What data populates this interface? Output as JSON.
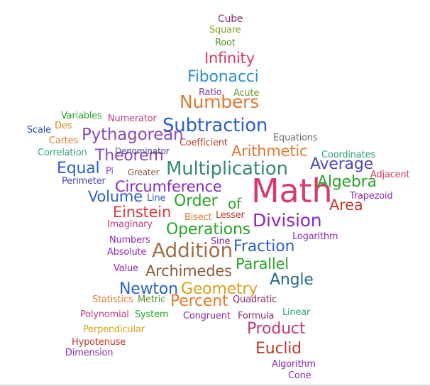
{
  "words": [
    {
      "id": "cube",
      "text": "Cube",
      "color": "#8b2a6e"
    },
    {
      "id": "square",
      "text": "Square",
      "color": "#8aa329"
    },
    {
      "id": "root",
      "text": "Root",
      "color": "#5a8a2a"
    },
    {
      "id": "infinity",
      "text": "Infinity",
      "color": "#d93a5c"
    },
    {
      "id": "fibonacci",
      "text": "Fibonacci",
      "color": "#2a8fc9"
    },
    {
      "id": "ratio",
      "text": "Ratio",
      "color": "#8b3a99"
    },
    {
      "id": "acute",
      "text": "Acute",
      "color": "#6a9a2a"
    },
    {
      "id": "numbers-top",
      "text": "Numbers",
      "color": "#e07a30"
    },
    {
      "id": "variables",
      "text": "Variables",
      "color": "#2aa32a"
    },
    {
      "id": "numerator",
      "text": "Numerator",
      "color": "#c03a80"
    },
    {
      "id": "subtraction",
      "text": "Subtraction",
      "color": "#2a5fc9"
    },
    {
      "id": "scale",
      "text": "Scale",
      "color": "#2a4fb9"
    },
    {
      "id": "des",
      "text": "Des",
      "color": "#d98a1a"
    },
    {
      "id": "pythagorean",
      "text": "Pythagorean",
      "color": "#8b4ab9"
    },
    {
      "id": "equations",
      "text": "Equations",
      "color": "#6a6a6a"
    },
    {
      "id": "cartes",
      "text": "Cartes",
      "color": "#e07a30"
    },
    {
      "id": "coefficient",
      "text": "Coefficient",
      "color": "#c0392b"
    },
    {
      "id": "arithmetic",
      "text": "Arithmetic",
      "color": "#e07a30"
    },
    {
      "id": "correlation",
      "text": "Correlation",
      "color": "#2aa370"
    },
    {
      "id": "theorem",
      "text": "Theorem",
      "color": "#8b4ab9"
    },
    {
      "id": "denominator",
      "text": "Denominator",
      "color": "#5a4a8a"
    },
    {
      "id": "coordinates",
      "text": "Coordinates",
      "color": "#2aa370"
    },
    {
      "id": "equal",
      "text": "Equal",
      "color": "#2a5fc9"
    },
    {
      "id": "pi",
      "text": "Pi",
      "color": "#8b4ab9"
    },
    {
      "id": "greater",
      "text": "Greater",
      "color": "#8b5a3a"
    },
    {
      "id": "multiplication",
      "text": "Multiplication",
      "color": "#3a8a6a"
    },
    {
      "id": "average",
      "text": "Average",
      "color": "#4a4ab9"
    },
    {
      "id": "adjacent",
      "text": "Adjacent",
      "color": "#d93a5c"
    },
    {
      "id": "perimeter",
      "text": "Perimeter",
      "color": "#4a4ab9"
    },
    {
      "id": "circumference",
      "text": "Circumference",
      "color": "#8b2ab9"
    },
    {
      "id": "math",
      "text": "Math",
      "color": "#d93a6c"
    },
    {
      "id": "algebra",
      "text": "Algebra",
      "color": "#2aa32a"
    },
    {
      "id": "volume",
      "text": "Volume",
      "color": "#2a5fc9"
    },
    {
      "id": "line",
      "text": "Line",
      "color": "#2a5fc9"
    },
    {
      "id": "order",
      "text": "Order",
      "color": "#2aa32a"
    },
    {
      "id": "of",
      "text": "of",
      "color": "#2aa32a"
    },
    {
      "id": "trapezoid",
      "text": "Trapezoid",
      "color": "#8b2ab9"
    },
    {
      "id": "area",
      "text": "Area",
      "color": "#c0392b"
    },
    {
      "id": "einstein",
      "text": "Einstein",
      "color": "#d93a3a"
    },
    {
      "id": "bisect",
      "text": "Bisect",
      "color": "#e07a30"
    },
    {
      "id": "lesser",
      "text": "Lesser",
      "color": "#c0392b"
    },
    {
      "id": "division",
      "text": "Division",
      "color": "#8b2ab9"
    },
    {
      "id": "imaginary",
      "text": "Imaginary",
      "color": "#c03a80"
    },
    {
      "id": "operations",
      "text": "Operations",
      "color": "#2aa32a"
    },
    {
      "id": "logarithm",
      "text": "Logarithm",
      "color": "#8b2ab9"
    },
    {
      "id": "numbers-mid",
      "text": "Numbers",
      "color": "#8b2ab9"
    },
    {
      "id": "sine",
      "text": "Sine",
      "color": "#8b2a8a"
    },
    {
      "id": "fraction",
      "text": "Fraction",
      "color": "#2a5fc9"
    },
    {
      "id": "absolute",
      "text": "Absolute",
      "color": "#8b2ab9"
    },
    {
      "id": "addition",
      "text": "Addition",
      "color": "#a0704a"
    },
    {
      "id": "parallel",
      "text": "Parallel",
      "color": "#2aa32a"
    },
    {
      "id": "value",
      "text": "Value",
      "color": "#8b2ab9"
    },
    {
      "id": "archimedes",
      "text": "Archimedes",
      "color": "#8b5a3a"
    },
    {
      "id": "angle",
      "text": "Angle",
      "color": "#2a6a8a"
    },
    {
      "id": "newton",
      "text": "Newton",
      "color": "#2a5fc9"
    },
    {
      "id": "geometry",
      "text": "Geometry",
      "color": "#d9a01a"
    },
    {
      "id": "statistics",
      "text": "Statistics",
      "color": "#e07a30"
    },
    {
      "id": "metric",
      "text": "Metric",
      "color": "#5a8a2a"
    },
    {
      "id": "percent",
      "text": "Percent",
      "color": "#e07a30"
    },
    {
      "id": "quadratic",
      "text": "Quadratic",
      "color": "#8b2a6e"
    },
    {
      "id": "polynomial",
      "text": "Polynomial",
      "color": "#c03a80"
    },
    {
      "id": "system",
      "text": "System",
      "color": "#2aa32a"
    },
    {
      "id": "congruent",
      "text": "Congruent",
      "color": "#8b2ab9"
    },
    {
      "id": "formula",
      "text": "Formula",
      "color": "#8b2a6e"
    },
    {
      "id": "linear",
      "text": "Linear",
      "color": "#2aa370"
    },
    {
      "id": "perpendicular",
      "text": "Perpendicular",
      "color": "#d9a01a"
    },
    {
      "id": "product",
      "text": "Product",
      "color": "#c03a80"
    },
    {
      "id": "hypotenuse",
      "text": "Hypotenuse",
      "color": "#c0392b"
    },
    {
      "id": "euclid",
      "text": "Euclid",
      "color": "#c0392b"
    },
    {
      "id": "dimension",
      "text": "Dimension",
      "color": "#8b2ab9"
    },
    {
      "id": "algorithm",
      "text": "Algorithm",
      "color": "#8b2ab9"
    },
    {
      "id": "cone",
      "text": "Cone",
      "color": "#8b2ab9"
    }
  ]
}
